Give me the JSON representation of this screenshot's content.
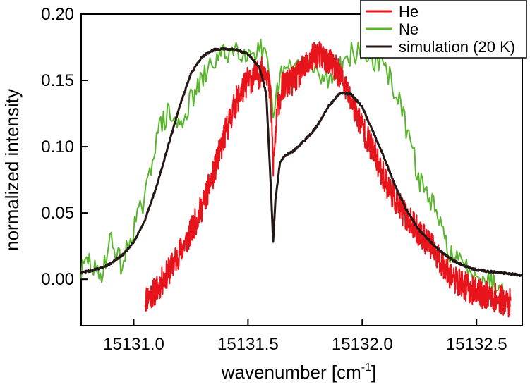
{
  "chart_data": {
    "type": "line",
    "title": "",
    "xlabel": "wavenumber [cm",
    "xlabel_superscript": "-1",
    "xlabel_suffix": "]",
    "ylabel": "normalized intensity",
    "xlim": [
      15130.77,
      15132.7
    ],
    "ylim": [
      -0.035,
      0.2
    ],
    "x_ticks": [
      15131.0,
      15131.5,
      15132.0,
      15132.5
    ],
    "x_tick_labels": [
      "15131.0",
      "15131.5",
      "15132.0",
      "15132.5"
    ],
    "y_ticks": [
      0.0,
      0.05,
      0.1,
      0.15,
      0.2
    ],
    "y_tick_labels": [
      "0.00",
      "0.05",
      "0.10",
      "0.15",
      "0.20"
    ],
    "grid": false,
    "legend_position": "top-right",
    "series": [
      {
        "name": "He",
        "color": "#e8141b",
        "x": [
          15131.05,
          15131.1,
          15131.15,
          15131.2,
          15131.25,
          15131.3,
          15131.35,
          15131.4,
          15131.45,
          15131.5,
          15131.55,
          15131.58,
          15131.6,
          15131.61,
          15131.63,
          15131.65,
          15131.7,
          15131.75,
          15131.8,
          15131.85,
          15131.9,
          15131.95,
          15132.0,
          15132.05,
          15132.1,
          15132.15,
          15132.2,
          15132.25,
          15132.3,
          15132.35,
          15132.4,
          15132.45,
          15132.5,
          15132.55,
          15132.6,
          15132.65
        ],
        "values": [
          -0.015,
          -0.008,
          0.005,
          0.02,
          0.035,
          0.055,
          0.08,
          0.11,
          0.135,
          0.15,
          0.155,
          0.16,
          0.135,
          0.085,
          0.13,
          0.145,
          0.15,
          0.16,
          0.17,
          0.165,
          0.155,
          0.135,
          0.115,
          0.095,
          0.075,
          0.058,
          0.045,
          0.035,
          0.025,
          0.012,
          0.0,
          -0.005,
          -0.01,
          -0.012,
          -0.015,
          -0.018
        ]
      },
      {
        "name": "Ne",
        "color": "#5ab52e",
        "x": [
          15130.77,
          15130.8,
          15130.85,
          15130.9,
          15130.95,
          15131.0,
          15131.05,
          15131.1,
          15131.15,
          15131.2,
          15131.25,
          15131.3,
          15131.35,
          15131.4,
          15131.45,
          15131.5,
          15131.55,
          15131.58,
          15131.6,
          15131.61,
          15131.63,
          15131.65,
          15131.7,
          15131.75,
          15131.8,
          15131.85,
          15131.9,
          15131.95,
          15132.0,
          15132.05,
          15132.1,
          15132.15,
          15132.2,
          15132.25,
          15132.3,
          15132.35,
          15132.4,
          15132.45,
          15132.5,
          15132.55,
          15132.6,
          15132.65
        ],
        "values": [
          0.005,
          0.015,
          0.0,
          0.03,
          0.01,
          0.04,
          0.06,
          0.11,
          0.125,
          0.115,
          0.135,
          0.15,
          0.165,
          0.17,
          0.175,
          0.17,
          0.175,
          0.165,
          0.14,
          0.115,
          0.145,
          0.155,
          0.16,
          0.165,
          0.155,
          0.15,
          0.16,
          0.17,
          0.17,
          0.165,
          0.16,
          0.14,
          0.11,
          0.075,
          0.06,
          0.035,
          0.015,
          0.01,
          0.005,
          0.0,
          -0.005,
          -0.012
        ]
      },
      {
        "name": "simulation (20 K)",
        "color": "#231815",
        "x": [
          15130.77,
          15130.85,
          15130.9,
          15130.95,
          15131.0,
          15131.05,
          15131.1,
          15131.15,
          15131.2,
          15131.25,
          15131.3,
          15131.35,
          15131.4,
          15131.45,
          15131.5,
          15131.55,
          15131.58,
          15131.6,
          15131.61,
          15131.62,
          15131.64,
          15131.66,
          15131.7,
          15131.75,
          15131.8,
          15131.85,
          15131.9,
          15131.95,
          15132.0,
          15132.05,
          15132.1,
          15132.15,
          15132.2,
          15132.25,
          15132.3,
          15132.35,
          15132.4,
          15132.45,
          15132.5,
          15132.6,
          15132.7
        ],
        "values": [
          0.005,
          0.008,
          0.012,
          0.018,
          0.028,
          0.045,
          0.07,
          0.1,
          0.13,
          0.155,
          0.168,
          0.173,
          0.174,
          0.173,
          0.17,
          0.16,
          0.14,
          0.07,
          0.028,
          0.06,
          0.088,
          0.093,
          0.097,
          0.105,
          0.115,
          0.13,
          0.14,
          0.14,
          0.13,
          0.11,
          0.09,
          0.068,
          0.05,
          0.037,
          0.028,
          0.02,
          0.014,
          0.01,
          0.007,
          0.005,
          0.003
        ]
      }
    ]
  }
}
